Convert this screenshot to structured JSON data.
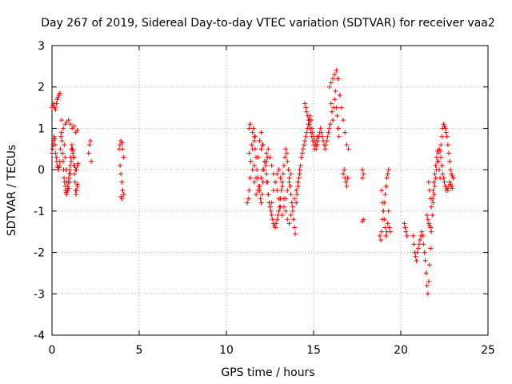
{
  "chart_data": {
    "type": "scatter",
    "title": "Day 267 of 2019, Sidereal Day-to-day VTEC variation (SDTVAR) for receiver vaa2",
    "xlabel": "GPS time / hours",
    "ylabel": "SDTVAR / TECUs",
    "xlim": [
      0,
      25
    ],
    "ylim": [
      -4,
      3
    ],
    "xticks": [
      0,
      5,
      10,
      15,
      20,
      25
    ],
    "yticks": [
      -4,
      -3,
      -2,
      -1,
      0,
      1,
      2,
      3
    ],
    "grid": true,
    "marker": "+",
    "color": "#ff0000",
    "series": [
      {
        "name": "SDTVAR",
        "x": [
          0.0,
          0.03,
          0.06,
          0.09,
          0.12,
          0.15,
          0.18,
          0.21,
          0.24,
          0.27,
          0.3,
          0.33,
          0.36,
          0.39,
          0.42,
          0.45,
          0.48,
          0.51,
          0.54,
          0.57,
          0.6,
          0.63,
          0.66,
          0.69,
          0.72,
          0.75,
          0.78,
          0.81,
          0.84,
          0.87,
          0.9,
          0.93,
          0.96,
          0.99,
          1.02,
          1.05,
          1.08,
          1.11,
          1.14,
          1.17,
          1.2,
          1.23,
          1.26,
          1.29,
          1.32,
          1.35,
          1.38,
          1.41,
          1.44,
          1.47,
          0.0,
          0.05,
          0.1,
          0.15,
          0.2,
          0.25,
          0.3,
          0.35,
          0.4,
          0.45,
          0.55,
          0.65,
          0.75,
          0.85,
          0.95,
          1.05,
          1.15,
          1.25,
          1.35,
          1.45,
          0.7,
          0.75,
          0.8,
          0.85,
          0.9,
          0.95,
          1.0,
          1.05,
          1.1,
          1.15,
          1.2,
          1.25,
          1.3,
          1.35,
          1.4,
          1.45,
          1.5,
          2.1,
          2.15,
          2.2,
          2.25,
          3.85,
          3.9,
          3.95,
          4.0,
          4.05,
          4.1,
          3.9,
          3.95,
          4.0,
          4.05,
          4.1,
          3.95,
          4.0,
          4.05,
          11.2,
          11.25,
          11.3,
          11.35,
          11.4,
          11.45,
          11.5,
          11.55,
          11.6,
          11.65,
          11.7,
          11.75,
          11.8,
          11.85,
          11.9,
          11.95,
          12.0,
          12.05,
          12.1,
          12.15,
          12.2,
          12.25,
          12.3,
          12.35,
          12.4,
          12.45,
          12.5,
          12.55,
          12.6,
          12.65,
          12.7,
          12.75,
          12.8,
          12.85,
          12.9,
          12.95,
          13.0,
          13.05,
          13.1,
          13.15,
          13.2,
          13.25,
          13.3,
          13.35,
          13.4,
          13.45,
          13.5,
          13.55,
          13.6,
          13.65,
          13.7,
          13.75,
          13.8,
          13.85,
          13.9,
          13.95,
          11.3,
          11.4,
          11.5,
          11.6,
          11.7,
          11.8,
          11.9,
          12.0,
          12.1,
          12.2,
          12.3,
          12.4,
          12.5,
          12.6,
          12.7,
          12.8,
          12.9,
          13.0,
          13.1,
          13.2,
          13.3,
          13.4,
          13.5,
          13.6,
          13.7,
          13.8,
          13.9,
          14.0,
          14.1,
          14.2,
          11.5,
          11.6,
          11.7,
          11.8,
          11.9,
          12.0,
          12.1,
          12.2,
          12.3,
          12.4,
          12.5,
          12.6,
          12.7,
          12.8,
          12.9,
          13.0,
          13.1,
          13.2,
          13.3,
          13.4,
          13.5,
          13.6,
          13.7,
          11.3,
          11.35,
          11.6,
          11.65,
          12.0,
          12.05,
          12.3,
          12.35,
          14.0,
          14.05,
          14.1,
          14.15,
          14.2,
          14.25,
          14.3,
          14.35,
          14.4,
          14.45,
          14.5,
          14.55,
          14.6,
          14.65,
          14.7,
          14.75,
          14.8,
          14.85,
          14.9,
          14.95,
          15.0,
          15.05,
          15.1,
          15.15,
          15.2,
          15.25,
          15.3,
          15.35,
          15.4,
          15.45,
          15.5,
          15.55,
          15.6,
          15.65,
          15.7,
          15.75,
          15.8,
          15.85,
          15.9,
          15.95,
          14.5,
          14.55,
          14.6,
          14.65,
          14.7,
          14.75,
          14.8,
          14.85,
          14.9,
          14.95,
          15.0,
          15.05,
          15.1,
          15.15,
          15.2,
          15.9,
          16.0,
          16.1,
          16.2,
          16.3,
          16.4,
          16.5,
          16.6,
          16.7,
          16.8,
          16.9,
          17.0,
          16.0,
          16.05,
          16.1,
          16.15,
          16.2,
          16.25,
          16.3,
          16.35,
          16.4,
          16.45,
          16.7,
          16.75,
          16.8,
          16.85,
          16.9,
          16.95,
          17.8,
          17.85,
          17.8,
          17.85,
          17.8,
          18.8,
          18.85,
          18.9,
          18.95,
          19.0,
          19.05,
          19.1,
          19.15,
          19.2,
          19.25,
          19.3,
          19.35,
          19.4,
          18.9,
          18.95,
          19.0,
          19.05,
          19.1,
          19.15,
          19.2,
          19.25,
          19.3,
          20.2,
          20.25,
          20.3,
          20.35,
          20.7,
          20.75,
          20.8,
          20.85,
          20.9,
          20.95,
          21.0,
          21.05,
          21.1,
          21.15,
          21.2,
          21.25,
          21.3,
          21.35,
          21.4,
          21.45,
          21.5,
          21.55,
          21.6,
          21.65,
          21.7,
          21.75,
          21.8,
          21.85,
          21.9,
          21.95,
          22.0,
          22.05,
          22.1,
          22.15,
          22.2,
          22.25,
          22.3,
          22.35,
          22.4,
          22.45,
          22.5,
          22.55,
          22.6,
          22.65,
          22.7,
          22.75,
          22.8,
          22.85,
          22.9,
          22.95,
          21.6,
          21.65,
          21.7,
          21.75,
          21.8,
          21.85,
          21.9,
          21.95,
          22.0,
          22.05,
          22.1,
          22.15,
          22.2,
          22.25,
          22.3,
          22.35,
          22.4,
          22.45,
          22.5,
          22.55,
          22.6,
          22.65,
          22.7,
          22.75,
          22.8,
          22.85,
          22.9,
          22.95,
          23.0,
          21.5,
          21.55,
          21.6,
          21.65,
          21.7
        ],
        "y": [
          0.4,
          0.5,
          0.6,
          0.7,
          0.8,
          0.75,
          0.6,
          0.4,
          0.3,
          0.2,
          0.1,
          0.05,
          0.0,
          0.05,
          0.1,
          0.2,
          0.5,
          0.8,
          0.9,
          0.7,
          0.4,
          0.2,
          0.0,
          -0.2,
          -0.3,
          -0.4,
          -0.5,
          -0.55,
          -0.6,
          -0.5,
          -0.4,
          -0.3,
          -0.2,
          -0.1,
          0.0,
          0.1,
          0.3,
          0.5,
          0.6,
          0.5,
          0.4,
          0.3,
          0.1,
          -0.1,
          -0.3,
          -0.5,
          -0.6,
          -0.5,
          -0.4,
          -0.35,
          1.5,
          1.55,
          1.6,
          1.5,
          1.45,
          1.6,
          1.7,
          1.75,
          1.8,
          1.85,
          1.2,
          1.0,
          1.1,
          1.15,
          1.2,
          1.1,
          1.0,
          1.05,
          0.9,
          0.95,
          0.6,
          0.3,
          0.0,
          -0.3,
          -0.5,
          -0.45,
          -0.3,
          -0.1,
          0.2,
          0.5,
          0.45,
          0.3,
          0.1,
          0.0,
          0.0,
          0.1,
          0.15,
          0.4,
          0.6,
          0.7,
          0.2,
          0.5,
          0.6,
          0.7,
          0.65,
          0.5,
          0.3,
          0.1,
          -0.1,
          -0.3,
          -0.5,
          -0.6,
          -0.65,
          -0.7,
          -0.5,
          -0.8,
          -0.7,
          -0.5,
          -0.2,
          0.2,
          0.6,
          0.9,
          1.0,
          0.8,
          0.5,
          0.3,
          0.0,
          -0.2,
          -0.4,
          -0.5,
          -0.7,
          -0.8,
          -0.6,
          -0.3,
          0.0,
          0.2,
          0.1,
          -0.1,
          -0.3,
          -0.6,
          -0.8,
          -0.9,
          -1.0,
          -1.1,
          -1.2,
          -1.3,
          -1.35,
          -1.4,
          -1.3,
          -1.2,
          -1.1,
          -1.0,
          -0.9,
          -0.7,
          -0.5,
          -0.3,
          -0.1,
          0.1,
          0.3,
          0.5,
          0.4,
          0.2,
          0.0,
          -0.2,
          -0.4,
          -0.6,
          -0.8,
          -1.0,
          -1.2,
          -1.4,
          -1.55,
          0.4,
          0.2,
          0.5,
          0.1,
          -0.2,
          0.3,
          0.7,
          0.9,
          0.6,
          0.2,
          -0.3,
          -0.6,
          -0.9,
          -0.8,
          -0.5,
          -0.3,
          -0.1,
          0.0,
          -0.2,
          -0.4,
          -0.7,
          -1.0,
          -1.2,
          -1.3,
          -1.1,
          -0.9,
          -0.7,
          -0.5,
          -0.3,
          -0.1,
          0.0,
          -0.3,
          -0.6,
          -0.5,
          -0.4,
          -0.2,
          0.0,
          0.2,
          0.4,
          0.5,
          0.3,
          0.1,
          -0.1,
          -0.3,
          -0.5,
          -0.7,
          -0.9,
          -1.1,
          -0.9,
          -0.7,
          -0.5,
          -0.3,
          -0.1,
          1.0,
          1.1,
          0.7,
          0.8,
          0.5,
          0.6,
          0.2,
          0.3,
          -0.8,
          -0.6,
          -0.4,
          -0.2,
          0.0,
          0.1,
          0.3,
          0.4,
          0.5,
          0.6,
          0.7,
          0.8,
          0.9,
          1.0,
          1.1,
          1.2,
          1.3,
          1.2,
          1.0,
          0.9,
          0.8,
          0.7,
          0.6,
          0.5,
          0.6,
          0.7,
          0.8,
          0.9,
          1.0,
          0.9,
          0.8,
          0.7,
          0.6,
          0.5,
          0.6,
          0.7,
          0.8,
          0.9,
          1.0,
          1.1,
          1.6,
          1.5,
          1.4,
          1.3,
          1.2,
          1.1,
          1.0,
          0.9,
          0.8,
          0.7,
          0.6,
          0.5,
          0.6,
          0.7,
          0.8,
          2.0,
          2.1,
          2.2,
          2.3,
          2.4,
          2.2,
          1.8,
          1.5,
          1.2,
          0.9,
          0.6,
          0.5,
          1.6,
          1.4,
          1.2,
          1.5,
          1.7,
          1.9,
          1.5,
          1.3,
          1.0,
          0.8,
          -0.1,
          0.0,
          -0.2,
          -0.3,
          -0.4,
          -0.2,
          0.0,
          -0.1,
          -0.2,
          -1.2,
          -1.25,
          -1.6,
          -1.7,
          -1.5,
          -1.2,
          -1.0,
          -0.8,
          -0.6,
          -0.4,
          -0.2,
          -0.1,
          0.0,
          -1.4,
          -1.5,
          -0.5,
          -0.8,
          -1.0,
          -1.2,
          -1.4,
          -1.6,
          -1.5,
          -1.3,
          -1.0,
          -1.3,
          -1.4,
          -1.5,
          -1.6,
          -1.6,
          -1.8,
          -2.0,
          -2.1,
          -2.2,
          -2.0,
          -1.9,
          -1.8,
          -1.7,
          -1.6,
          -1.5,
          -1.6,
          -1.8,
          -2.0,
          -2.2,
          -2.5,
          -2.8,
          -3.0,
          -2.7,
          -2.3,
          -1.9,
          -1.5,
          -1.1,
          -0.8,
          -0.6,
          -0.4,
          -0.2,
          0.0,
          0.2,
          0.4,
          0.5,
          0.45,
          0.3,
          0.1,
          -0.1,
          -0.2,
          -0.3,
          -0.4,
          -0.5,
          -0.45,
          -0.5,
          -0.4,
          -0.3,
          -0.35,
          -0.4,
          -0.45,
          -0.3,
          -0.5,
          -0.7,
          -0.9,
          -0.7,
          -0.5,
          -0.3,
          -0.1,
          0.1,
          0.3,
          0.45,
          0.2,
          0.0,
          -0.2,
          0.6,
          0.8,
          1.0,
          1.1,
          1.05,
          1.0,
          0.9,
          0.8,
          0.6,
          0.4,
          0.2,
          0.0,
          -0.1,
          -0.15,
          -0.2,
          -1.1,
          -1.2,
          -1.3,
          -1.35,
          -1.4
        ]
      }
    ]
  }
}
